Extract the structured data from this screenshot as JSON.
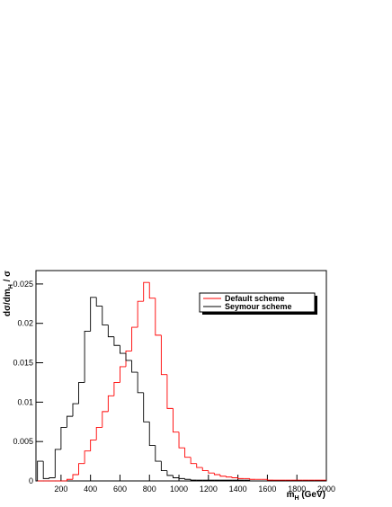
{
  "chart_data": {
    "type": "histogram",
    "x_label": {
      "text": "m",
      "subscript": "H",
      "suffix": " (GeV)"
    },
    "y_label": {
      "text": "dσ/dm",
      "subscript": "H",
      "suffix": " / σ"
    },
    "bins": [
      40,
      80,
      120,
      160,
      200,
      240,
      280,
      320,
      360,
      400,
      440,
      480,
      520,
      560,
      600,
      640,
      680,
      720,
      760,
      800,
      840,
      880,
      920,
      960,
      1000,
      1040,
      1080,
      1120,
      1160,
      1200,
      1240,
      1280,
      1320,
      1360,
      1400,
      1440,
      1480,
      1520,
      1560,
      1600,
      1640,
      1680,
      1720,
      1760,
      1800,
      1840,
      1880,
      1920,
      1960,
      2000
    ],
    "series": [
      {
        "name": "Default scheme",
        "color": "#ff0000",
        "values": [
          0,
          0,
          0,
          0,
          0,
          0.0002,
          0.0008,
          0.0022,
          0.0038,
          0.0052,
          0.0068,
          0.0088,
          0.0108,
          0.0125,
          0.0145,
          0.0165,
          0.0195,
          0.0228,
          0.0252,
          0.0232,
          0.0185,
          0.0135,
          0.0092,
          0.0062,
          0.0042,
          0.003,
          0.0022,
          0.0017,
          0.0013,
          0.001,
          0.0008,
          0.0006,
          0.0005,
          0.0004,
          0.0003,
          0.0003,
          0.0002,
          0.0002,
          0.0002,
          0.0001,
          0.0001,
          0.0001,
          0.0001,
          0.0001,
          0.0001,
          0.0001,
          0.0001,
          0.0001,
          0.0001
        ]
      },
      {
        "name": "Seymour scheme",
        "color": "#000000",
        "values": [
          0.0025,
          0.0003,
          0.0004,
          0.004,
          0.0068,
          0.0082,
          0.0098,
          0.0125,
          0.019,
          0.0233,
          0.0222,
          0.0198,
          0.0183,
          0.0172,
          0.0162,
          0.0153,
          0.0138,
          0.0112,
          0.0075,
          0.0045,
          0.0025,
          0.0013,
          0.0007,
          0.0004,
          0.0003,
          0.0002,
          0.0001,
          0.0001,
          0.0001,
          0.0001,
          0.0001,
          0.0001,
          0.0001,
          0.0001,
          0.0001,
          0.0001,
          0,
          0,
          0,
          0,
          0,
          0,
          0,
          0,
          0,
          0,
          0,
          0,
          0
        ]
      }
    ],
    "xlim": [
      30,
      2000
    ],
    "ylim": [
      0,
      0.0267
    ],
    "xticks": [
      200,
      400,
      600,
      800,
      1000,
      1200,
      1400,
      1600,
      1800,
      2000
    ],
    "yticks": [
      0,
      0.005,
      0.01,
      0.015,
      0.02,
      0.025
    ],
    "legend": "top-right"
  }
}
